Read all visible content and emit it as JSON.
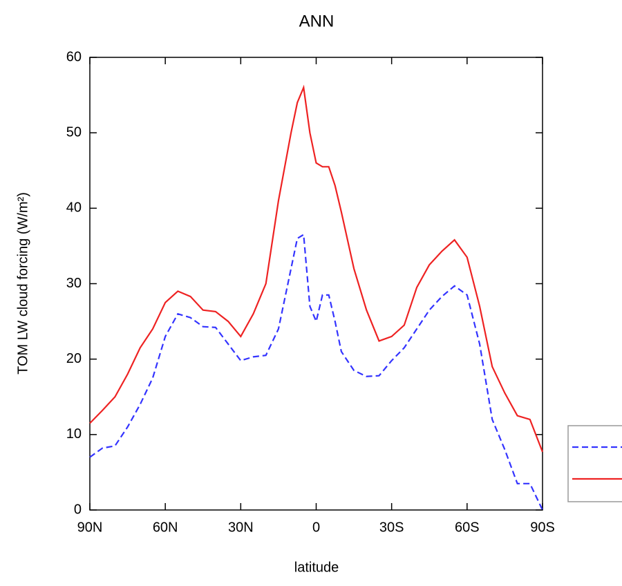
{
  "chart_data": {
    "type": "line",
    "title": "ANN",
    "x_label": "latitude",
    "y_label": "TOM LW cloud forcing (W/m²)",
    "x": [
      90,
      85,
      80,
      75,
      70,
      65,
      60,
      55,
      50,
      45,
      40,
      35,
      30,
      25,
      20,
      15,
      10,
      7.5,
      5,
      2.5,
      0,
      -2.5,
      -5,
      -7.5,
      -10,
      -15,
      -20,
      -25,
      -30,
      -35,
      -40,
      -45,
      -50,
      -55,
      -60,
      -65,
      -70,
      -75,
      -80,
      -85,
      -90
    ],
    "series": [
      {
        "color": "#3333ff",
        "dash": "dashed",
        "values": [
          7,
          8.2,
          8.5,
          11,
          14,
          17.5,
          23,
          26,
          25.5,
          24.3,
          24.2,
          22,
          19.8,
          20.3,
          20.5,
          24,
          32,
          36,
          36.5,
          27,
          25,
          28.5,
          28.5,
          25,
          21,
          18.5,
          17.7,
          17.8,
          19.8,
          21.5,
          24,
          26.5,
          28.3,
          29.7,
          28.5,
          22,
          12,
          8,
          3.5,
          3.5,
          0
        ]
      },
      {
        "color": "#ee2222",
        "dash": "solid",
        "values": [
          11.5,
          13.2,
          15,
          18,
          21.5,
          24,
          27.5,
          29,
          28.3,
          26.5,
          26.3,
          25,
          23,
          26,
          30,
          41,
          50,
          54,
          56,
          50,
          46,
          45.5,
          45.5,
          43,
          39.5,
          32,
          26.5,
          22.4,
          23,
          24.5,
          29.5,
          32.5,
          34.3,
          35.8,
          33.5,
          27,
          19,
          15.5,
          12.5,
          12,
          7.7
        ]
      }
    ],
    "xlim": [
      90,
      -90
    ],
    "xticks": [
      {
        "value": 90,
        "label": "90N"
      },
      {
        "value": 60,
        "label": "60N"
      },
      {
        "value": 30,
        "label": "30N"
      },
      0,
      {
        "value": -30,
        "label": "30S"
      },
      {
        "value": -60,
        "label": "60S"
      },
      {
        "value": -90,
        "label": "90S"
      }
    ],
    "ylim": [
      0,
      60
    ],
    "yticks": [
      0,
      10,
      20,
      30,
      40,
      50,
      60
    ],
    "grid": false,
    "legend": "outside-right"
  }
}
